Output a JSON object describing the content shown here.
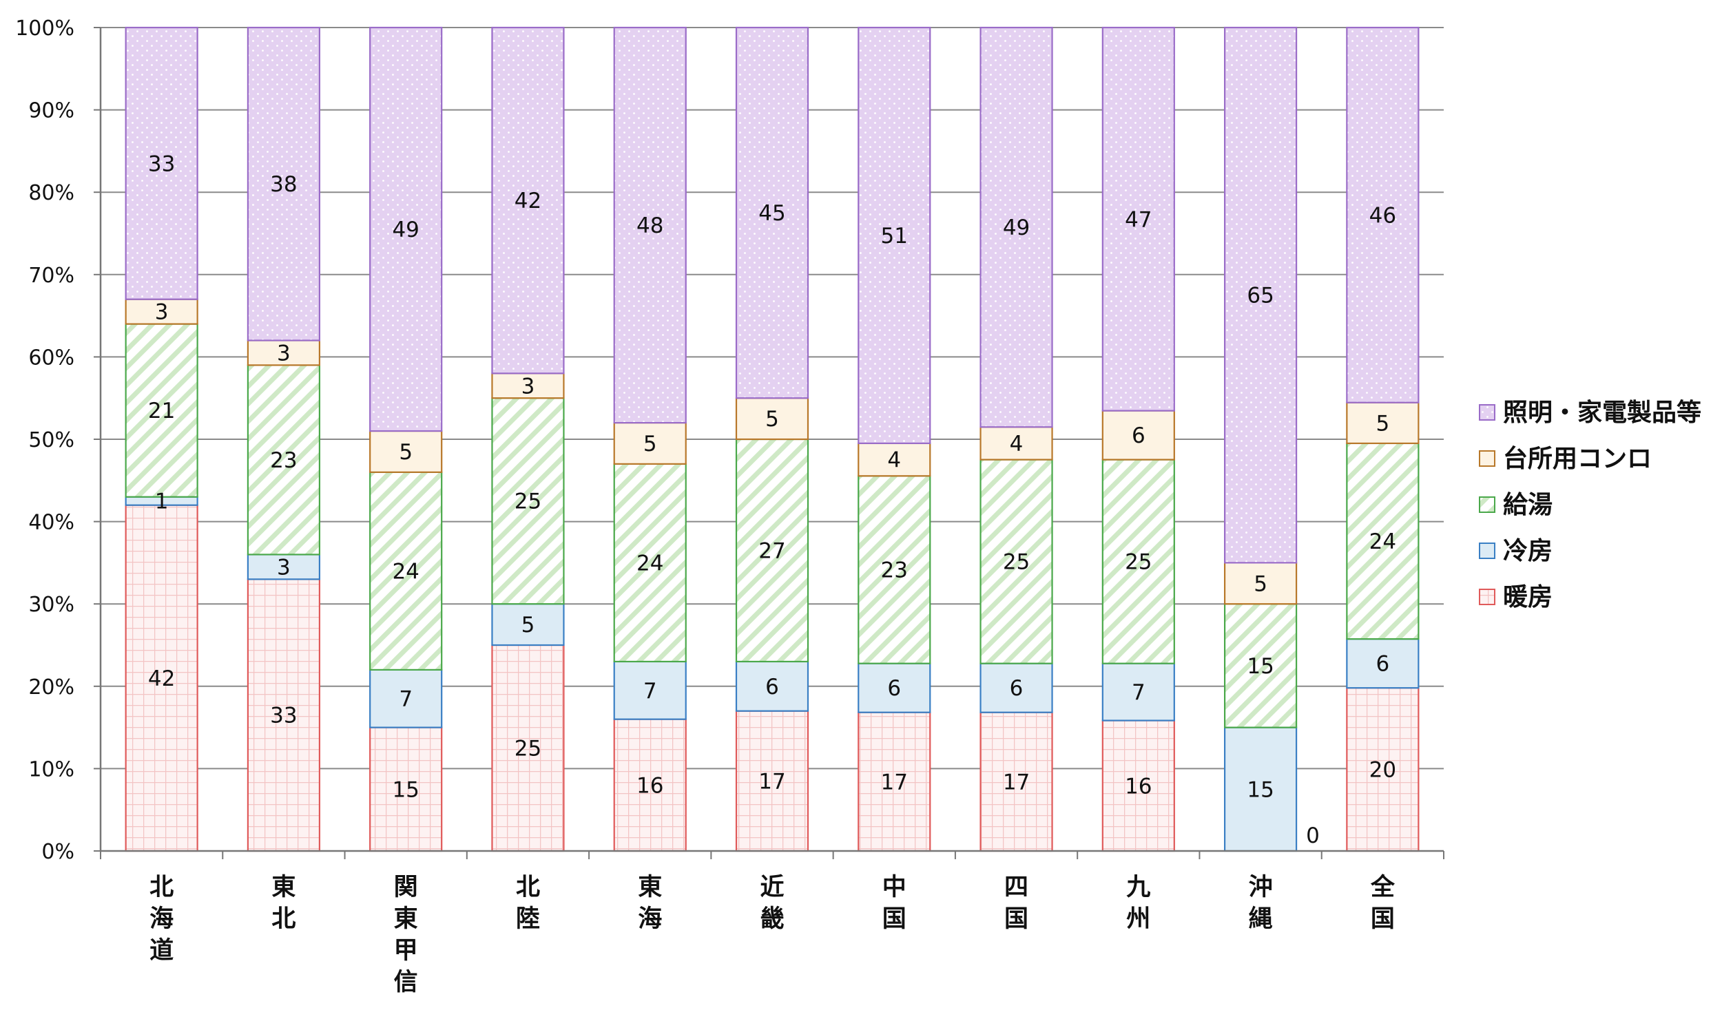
{
  "chart_data": {
    "type": "bar",
    "stacked": true,
    "percent_stacked": true,
    "categories": [
      "北海道",
      "東北",
      "関東甲信",
      "北陸",
      "東海",
      "近畿",
      "中国",
      "四国",
      "九州",
      "沖縄",
      "全国"
    ],
    "series": [
      {
        "name": "暖房",
        "values": [
          42,
          33,
          15,
          25,
          16,
          17,
          17,
          17,
          16,
          0,
          20
        ],
        "color": "#e05a5a",
        "fill": "#fdf2f2",
        "pattern": "grid"
      },
      {
        "name": "冷房",
        "values": [
          1,
          3,
          7,
          5,
          7,
          6,
          6,
          6,
          7,
          15,
          6
        ],
        "color": "#3a7fc4",
        "fill": "#dcebf5",
        "pattern": "solid"
      },
      {
        "name": "給湯",
        "values": [
          21,
          23,
          24,
          25,
          24,
          27,
          23,
          25,
          25,
          15,
          24
        ],
        "color": "#4aa84a",
        "fill": "#ffffff",
        "pattern": "diagonal"
      },
      {
        "name": "台所用コンロ",
        "values": [
          3,
          3,
          5,
          3,
          5,
          5,
          4,
          4,
          6,
          5,
          5
        ],
        "color": "#b8782a",
        "fill": "#fdf3e3",
        "pattern": "solid"
      },
      {
        "name": "照明・家電製品等",
        "values": [
          33,
          38,
          49,
          42,
          48,
          45,
          51,
          49,
          47,
          65,
          46
        ],
        "color": "#9a6cc8",
        "fill": "#e6d4f2",
        "pattern": "dots"
      }
    ],
    "yticks": [
      "0%",
      "10%",
      "20%",
      "30%",
      "40%",
      "50%",
      "60%",
      "70%",
      "80%",
      "90%",
      "100%"
    ],
    "ylim": [
      0,
      100
    ],
    "grid": true,
    "legend_position": "right",
    "legend_order": [
      "照明・家電製品等",
      "台所用コンロ",
      "給湯",
      "冷房",
      "暖房"
    ]
  }
}
